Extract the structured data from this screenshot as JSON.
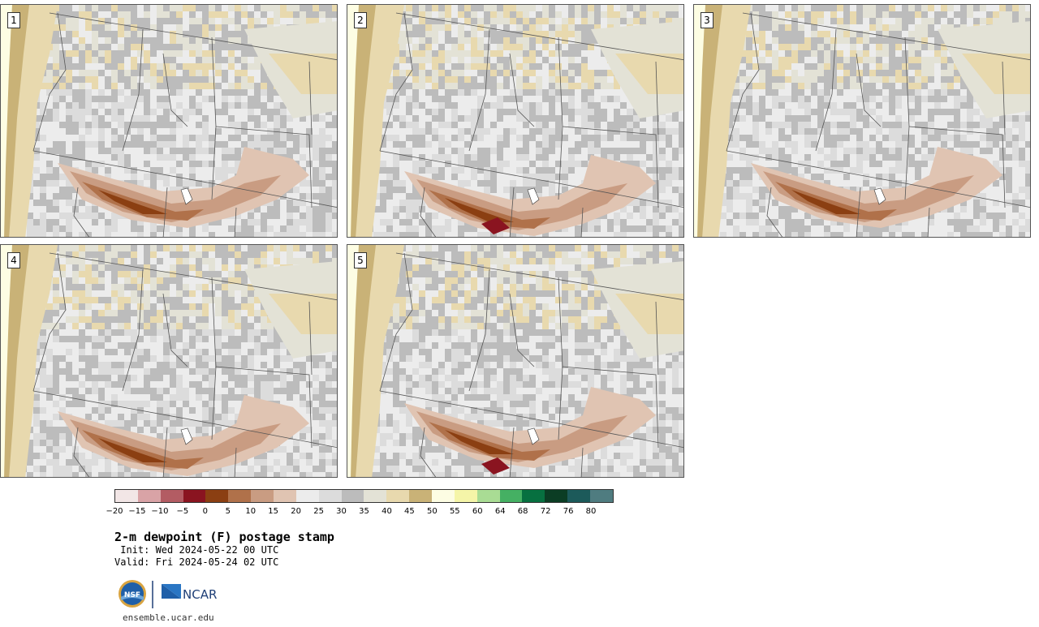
{
  "panels": [
    {
      "number": "1"
    },
    {
      "number": "2"
    },
    {
      "number": "3"
    },
    {
      "number": "4"
    },
    {
      "number": "5"
    }
  ],
  "colorbar": {
    "colors": [
      "#f2e6e6",
      "#d9a3a6",
      "#b35c63",
      "#8a1420",
      "#8b3f12",
      "#b0714a",
      "#c99c82",
      "#e0c4b2",
      "#ececec",
      "#dcdcdc",
      "#bcbcbc",
      "#e3e2d6",
      "#e8d9ae",
      "#c9b277",
      "#fdfde3",
      "#f5f5a8",
      "#a9dc94",
      "#45b063",
      "#077040",
      "#0b3d24",
      "#1c5a5a",
      "#4f7c80"
    ],
    "tick_labels": [
      "−20",
      "−15",
      "−10",
      "−5",
      "0",
      "5",
      "10",
      "15",
      "20",
      "25",
      "30",
      "35",
      "40",
      "45",
      "50",
      "55",
      "60",
      "64",
      "68",
      "72",
      "76",
      "80"
    ]
  },
  "title": "2-m dewpoint (F) postage stamp",
  "init_line": " Init: Wed 2024-05-22 00 UTC",
  "valid_line": "Valid: Fri 2024-05-24 02 UTC",
  "logos": {
    "left": "NSF",
    "right": "NCAR"
  },
  "website": "ensemble.ucar.edu"
}
